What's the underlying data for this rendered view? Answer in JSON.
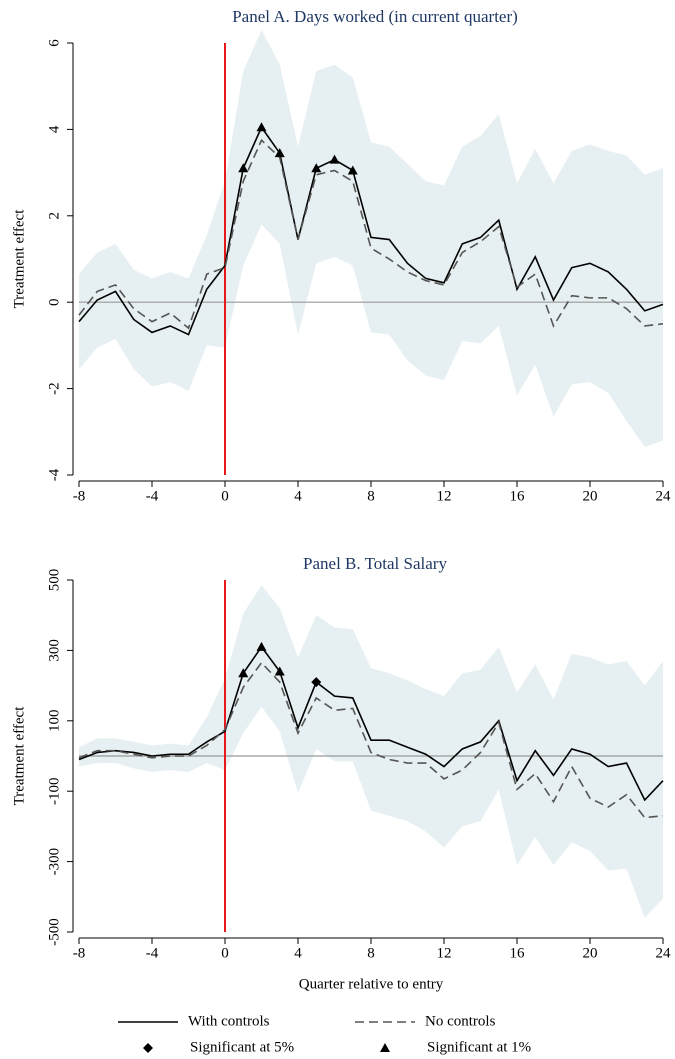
{
  "chart_data": [
    {
      "type": "line",
      "title": "Panel A. Days worked (in current quarter)",
      "ylabel": "Treatment effect",
      "x": [
        -8,
        -7,
        -6,
        -5,
        -4,
        -3,
        -2,
        -1,
        0,
        1,
        2,
        3,
        4,
        5,
        6,
        7,
        8,
        9,
        10,
        11,
        12,
        13,
        14,
        15,
        16,
        17,
        18,
        19,
        20,
        21,
        22,
        23,
        24
      ],
      "xlim": [
        -8,
        24
      ],
      "xticks": [
        -8,
        -4,
        0,
        4,
        8,
        12,
        16,
        20,
        24
      ],
      "ylim": [
        -4,
        6
      ],
      "yticks": [
        -4,
        -2,
        0,
        2,
        4,
        6
      ],
      "band": {
        "color": "#e6eff1",
        "upper": [
          0.65,
          1.15,
          1.35,
          0.75,
          0.55,
          0.7,
          0.55,
          1.55,
          2.8,
          5.35,
          6.3,
          5.5,
          3.6,
          5.35,
          5.5,
          5.2,
          3.7,
          3.6,
          3.2,
          2.8,
          2.7,
          3.6,
          3.85,
          4.35,
          2.75,
          3.55,
          2.75,
          3.5,
          3.65,
          3.5,
          3.4,
          2.95,
          3.1
        ],
        "lower": [
          -1.55,
          -1.05,
          -0.85,
          -1.55,
          -1.95,
          -1.85,
          -2.05,
          -1.0,
          -1.05,
          0.85,
          1.8,
          1.35,
          -0.75,
          0.9,
          1.05,
          0.85,
          -0.7,
          -0.75,
          -1.35,
          -1.7,
          -1.8,
          -0.9,
          -0.95,
          -0.55,
          -2.15,
          -1.45,
          -2.65,
          -1.9,
          -1.85,
          -2.1,
          -2.75,
          -3.35,
          -3.2
        ]
      },
      "series": [
        {
          "style": "solid",
          "color": "#000000",
          "values": [
            -0.45,
            0.05,
            0.25,
            -0.4,
            -0.7,
            -0.55,
            -0.75,
            0.3,
            0.85,
            3.1,
            4.05,
            3.45,
            1.45,
            3.1,
            3.3,
            3.05,
            1.5,
            1.45,
            0.9,
            0.55,
            0.45,
            1.35,
            1.5,
            1.9,
            0.3,
            1.05,
            0.05,
            0.8,
            0.9,
            0.7,
            0.3,
            -0.2,
            -0.05
          ]
        },
        {
          "style": "dashed",
          "color": "#555555",
          "values": [
            -0.3,
            0.25,
            0.4,
            -0.15,
            -0.45,
            -0.25,
            -0.6,
            0.65,
            0.8,
            2.8,
            3.75,
            3.35,
            1.45,
            2.95,
            3.05,
            2.8,
            1.25,
            1.0,
            0.7,
            0.5,
            0.4,
            1.15,
            1.4,
            1.75,
            0.35,
            0.65,
            -0.55,
            0.15,
            0.1,
            0.1,
            -0.15,
            -0.55,
            -0.5
          ]
        },
        {
          "style": "scatter",
          "marker": "triangle",
          "color": "#000000",
          "x": [
            1,
            2,
            3,
            5,
            6,
            7
          ],
          "values": [
            3.1,
            4.05,
            3.45,
            3.1,
            3.3,
            3.05
          ]
        }
      ],
      "hline": {
        "value": 0,
        "color": "#999999"
      },
      "vline": {
        "value": 0,
        "color": "#e8191a"
      }
    },
    {
      "type": "line",
      "title": "Panel B. Total Salary",
      "ylabel": "Treatment effect",
      "xlabel": "Quarter relative to entry",
      "x": [
        -8,
        -7,
        -6,
        -5,
        -4,
        -3,
        -2,
        -1,
        0,
        1,
        2,
        3,
        4,
        5,
        6,
        7,
        8,
        9,
        10,
        11,
        12,
        13,
        14,
        15,
        16,
        17,
        18,
        19,
        20,
        21,
        22,
        23,
        24
      ],
      "xlim": [
        -8,
        24
      ],
      "xticks": [
        -8,
        -4,
        0,
        4,
        8,
        12,
        16,
        20,
        24
      ],
      "ylim": [
        -500,
        500
      ],
      "yticks": [
        -500,
        -300,
        -100,
        100,
        300,
        500
      ],
      "band": {
        "color": "#e6eff1",
        "upper": [
          25,
          50,
          50,
          40,
          30,
          35,
          30,
          110,
          220,
          405,
          485,
          420,
          280,
          400,
          365,
          360,
          250,
          235,
          215,
          190,
          170,
          235,
          245,
          310,
          180,
          260,
          160,
          290,
          280,
          260,
          270,
          200,
          270
        ],
        "lower": [
          -30,
          -20,
          -20,
          -35,
          -45,
          -40,
          -45,
          -20,
          -40,
          65,
          140,
          70,
          -105,
          20,
          -15,
          -15,
          -155,
          -170,
          -185,
          -215,
          -260,
          -200,
          -185,
          -95,
          -310,
          -230,
          -310,
          -245,
          -270,
          -325,
          -320,
          -460,
          -405
        ]
      },
      "series": [
        {
          "name": "With controls",
          "style": "solid",
          "color": "#000000",
          "values": [
            -10,
            10,
            15,
            10,
            0,
            5,
            5,
            40,
            70,
            235,
            310,
            240,
            80,
            210,
            170,
            165,
            45,
            45,
            25,
            5,
            -30,
            20,
            40,
            100,
            -70,
            15,
            -55,
            20,
            5,
            -30,
            -20,
            -125,
            -70
          ]
        },
        {
          "name": "No controls",
          "style": "dashed",
          "color": "#555555",
          "values": [
            -5,
            15,
            15,
            5,
            -5,
            0,
            0,
            30,
            75,
            195,
            265,
            210,
            65,
            165,
            130,
            135,
            10,
            -10,
            -20,
            -20,
            -65,
            -40,
            10,
            95,
            -95,
            -50,
            -130,
            -30,
            -120,
            -145,
            -110,
            -175,
            -170
          ]
        },
        {
          "name": "Significant at 5%",
          "style": "scatter",
          "marker": "diamond",
          "color": "#000000",
          "x": [
            5
          ],
          "values": [
            210
          ]
        },
        {
          "name": "Significant at 1%",
          "style": "scatter",
          "marker": "triangle",
          "color": "#000000",
          "x": [
            1,
            2,
            3
          ],
          "values": [
            235,
            310,
            240
          ]
        }
      ],
      "hline": {
        "value": 0,
        "color": "#999999"
      },
      "vline": {
        "value": 0,
        "color": "#e8191a"
      }
    }
  ]
}
